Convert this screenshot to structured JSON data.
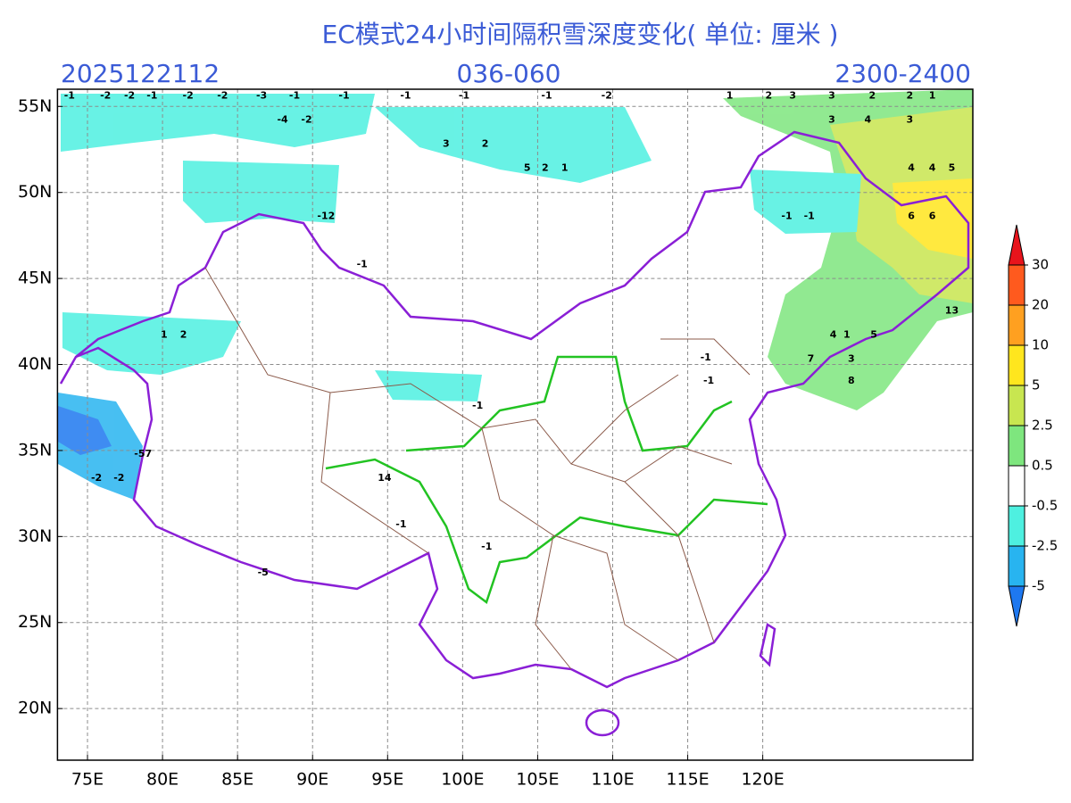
{
  "map": {
    "title": "EC模式24小时间隔积雪深度变化( 单位: 厘米 )",
    "init_time": "2025122112",
    "forecast_hours": "036-060",
    "valid_hours": "2300-2400",
    "xlim": [
      73,
      134
    ],
    "ylim": [
      17,
      56
    ],
    "xticks": [
      {
        "value": 75,
        "label": "75E"
      },
      {
        "value": 80,
        "label": "80E"
      },
      {
        "value": 85,
        "label": "85E"
      },
      {
        "value": 90,
        "label": "90E"
      },
      {
        "value": 95,
        "label": "95E"
      },
      {
        "value": 100,
        "label": "100E"
      },
      {
        "value": 105,
        "label": "105E"
      },
      {
        "value": 110,
        "label": "110E"
      },
      {
        "value": 115,
        "label": "115E"
      },
      {
        "value": 120,
        "label": "120E"
      }
    ],
    "yticks": [
      {
        "value": 20,
        "label": "20N"
      },
      {
        "value": 25,
        "label": "25N"
      },
      {
        "value": 30,
        "label": "30N"
      },
      {
        "value": 35,
        "label": "35N"
      },
      {
        "value": 40,
        "label": "40N"
      },
      {
        "value": 45,
        "label": "45N"
      },
      {
        "value": 50,
        "label": "50N"
      },
      {
        "value": 55,
        "label": "55N"
      }
    ],
    "grid": true,
    "colorbar": {
      "levels": [
        30,
        20,
        10,
        5,
        2.5,
        0.5,
        -0.5,
        -2.5,
        -5
      ],
      "colors": [
        "#e8141c",
        "#ff5a1e",
        "#ffa020",
        "#ffe61e",
        "#c8e650",
        "#7ee67e",
        "#ffffff",
        "#4ef0e0",
        "#28b4f0",
        "#1e78f0"
      ]
    },
    "labels": [
      {
        "value": -1,
        "lon": 73.8,
        "lat": 55.6
      },
      {
        "value": -2,
        "lon": 76.2,
        "lat": 55.6
      },
      {
        "value": -2,
        "lon": 77.8,
        "lat": 55.6
      },
      {
        "value": -1,
        "lon": 79.3,
        "lat": 55.6
      },
      {
        "value": -2,
        "lon": 81.7,
        "lat": 55.6
      },
      {
        "value": -2,
        "lon": 84.0,
        "lat": 55.6
      },
      {
        "value": -3,
        "lon": 86.6,
        "lat": 55.6
      },
      {
        "value": -1,
        "lon": 88.8,
        "lat": 55.6
      },
      {
        "value": -1,
        "lon": 92.1,
        "lat": 55.6
      },
      {
        "value": -1,
        "lon": 96.2,
        "lat": 55.6
      },
      {
        "value": -1,
        "lon": 100.1,
        "lat": 55.6
      },
      {
        "value": -1,
        "lon": 105.6,
        "lat": 55.6
      },
      {
        "value": -2,
        "lon": 109.6,
        "lat": 55.6
      },
      {
        "value": 1,
        "lon": 117.8,
        "lat": 55.6
      },
      {
        "value": 2,
        "lon": 120.4,
        "lat": 55.6
      },
      {
        "value": 3,
        "lon": 122.0,
        "lat": 55.6
      },
      {
        "value": 3,
        "lon": 124.6,
        "lat": 55.6
      },
      {
        "value": 2,
        "lon": 127.3,
        "lat": 55.6
      },
      {
        "value": 2,
        "lon": 129.8,
        "lat": 55.6
      },
      {
        "value": 1,
        "lon": 131.3,
        "lat": 55.6
      },
      {
        "value": 3,
        "lon": 124.6,
        "lat": 54.2
      },
      {
        "value": 4,
        "lon": 127.0,
        "lat": 54.2
      },
      {
        "value": 3,
        "lon": 129.8,
        "lat": 54.2
      },
      {
        "value": 4,
        "lon": 129.9,
        "lat": 51.4
      },
      {
        "value": 4,
        "lon": 131.3,
        "lat": 51.4
      },
      {
        "value": 5,
        "lon": 132.6,
        "lat": 51.4
      },
      {
        "value": 6,
        "lon": 129.9,
        "lat": 48.6
      },
      {
        "value": 6,
        "lon": 131.3,
        "lat": 48.6
      },
      {
        "value": 7,
        "lon": 123.2,
        "lat": 40.3
      },
      {
        "value": 3,
        "lon": 125.9,
        "lat": 40.3
      },
      {
        "value": 8,
        "lon": 125.9,
        "lat": 39.05
      },
      {
        "value": 13,
        "lon": 132.6,
        "lat": 43.1
      },
      {
        "value": 1,
        "lon": 125.6,
        "lat": 41.7
      },
      {
        "value": 4,
        "lon": 124.7,
        "lat": 41.7
      },
      {
        "value": 5,
        "lon": 127.4,
        "lat": 41.7
      },
      {
        "value": -4,
        "lon": 88.0,
        "lat": 54.2
      },
      {
        "value": -2,
        "lon": 89.6,
        "lat": 54.2
      },
      {
        "value": -12,
        "lon": 90.9,
        "lat": 48.6
      },
      {
        "value": -1,
        "lon": 93.3,
        "lat": 45.8
      },
      {
        "value": 14,
        "lon": 94.8,
        "lat": 33.4
      },
      {
        "value": -57,
        "lon": 78.7,
        "lat": 34.8
      },
      {
        "value": -2,
        "lon": 75.6,
        "lat": 33.4
      },
      {
        "value": -2,
        "lon": 77.1,
        "lat": 33.4
      },
      {
        "value": -1,
        "lon": 101.6,
        "lat": 29.4
      },
      {
        "value": -1,
        "lon": 95.9,
        "lat": 30.7
      },
      {
        "value": -1,
        "lon": 116.2,
        "lat": 40.4
      },
      {
        "value": -1,
        "lon": 116.4,
        "lat": 39.05
      },
      {
        "value": -1,
        "lon": 121.6,
        "lat": 48.6
      },
      {
        "value": -1,
        "lon": 123.1,
        "lat": 48.6
      },
      {
        "value": 1,
        "lon": 80.1,
        "lat": 41.7
      },
      {
        "value": 2,
        "lon": 81.4,
        "lat": 41.7
      },
      {
        "value": 5,
        "lon": 104.3,
        "lat": 51.4
      },
      {
        "value": 2,
        "lon": 105.5,
        "lat": 51.4
      },
      {
        "value": 1,
        "lon": 106.8,
        "lat": 51.4
      },
      {
        "value": -1,
        "lon": 101.0,
        "lat": 37.6
      },
      {
        "value": -5,
        "lon": 86.7,
        "lat": 27.9
      },
      {
        "value": 3,
        "lon": 98.9,
        "lat": 52.8
      },
      {
        "value": 2,
        "lon": 101.5,
        "lat": 52.8
      }
    ]
  }
}
